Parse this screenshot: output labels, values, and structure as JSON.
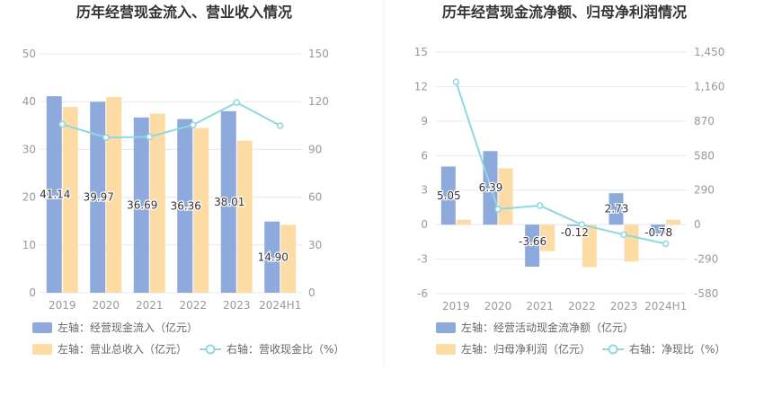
{
  "colors": {
    "blue": "#8eaadc",
    "orange": "#fddba4",
    "line": "#8ed8e0",
    "axis_text": "#999999",
    "grid": "#e6e8f0",
    "title": "#333333",
    "divider": "#eeeeee"
  },
  "chart_data": [
    {
      "type": "bar",
      "title": "历年经营现金流入、营业收入情况",
      "categories": [
        "2019",
        "2020",
        "2021",
        "2022",
        "2023",
        "2024H1"
      ],
      "y_left": {
        "min": 0,
        "max": 50,
        "ticks": [
          "0",
          "10",
          "20",
          "30",
          "40",
          "50"
        ]
      },
      "y_right": {
        "min": 0,
        "max": 150,
        "ticks": [
          "0",
          "30",
          "60",
          "90",
          "120",
          "150"
        ]
      },
      "grid": true,
      "series": [
        {
          "name": "左轴：经营现金流入（亿元）",
          "type": "bar",
          "axis": "left",
          "color": "#8eaadc",
          "values": [
            41.14,
            39.97,
            36.69,
            36.36,
            38.01,
            14.9
          ],
          "labels": [
            "41.14",
            "39.97",
            "36.69",
            "36.36",
            "38.01",
            "14.90"
          ]
        },
        {
          "name": "左轴：营业总收入（亿元）",
          "type": "bar",
          "axis": "left",
          "color": "#fddba4",
          "values": [
            38.9,
            41.0,
            37.5,
            34.5,
            31.8,
            14.2
          ]
        },
        {
          "name": "右轴：营收现金比（%）",
          "type": "line",
          "axis": "right",
          "color": "#8ed8e0",
          "values": [
            105.8,
            97.5,
            97.9,
            105.4,
            119.5,
            104.9
          ]
        }
      ],
      "legend": {
        "row1": [
          {
            "label": "左轴：经营现金流入（亿元）",
            "kind": "bar",
            "color": "#8eaadc"
          }
        ],
        "row2": [
          {
            "label": "左轴：营业总收入（亿元）",
            "kind": "bar",
            "color": "#fddba4"
          },
          {
            "label": "右轴：营收现金比（%）",
            "kind": "line",
            "color": "#8ed8e0"
          }
        ],
        "position": "bottom-left"
      }
    },
    {
      "type": "bar",
      "title": "历年经营现金流净额、归母净利润情况",
      "categories": [
        "2019",
        "2020",
        "2021",
        "2022",
        "2023",
        "2024H1"
      ],
      "y_left": {
        "min": -6,
        "max": 15,
        "ticks": [
          "-6",
          "-3",
          "0",
          "3",
          "6",
          "9",
          "12",
          "15"
        ]
      },
      "y_right": {
        "min": -580,
        "max": 1450,
        "ticks": [
          "-580",
          "-290",
          "0",
          "290",
          "580",
          "870",
          "1,160",
          "1,450"
        ]
      },
      "grid": true,
      "series": [
        {
          "name": "左轴：经营活动现金流净额（亿元）",
          "type": "bar",
          "axis": "left",
          "color": "#8eaadc",
          "values": [
            5.05,
            6.39,
            -3.66,
            -0.12,
            2.73,
            -0.78
          ],
          "labels": [
            "5.05",
            "6.39",
            "-3.66",
            "-0.12",
            "2.73",
            "-0.78"
          ]
        },
        {
          "name": "左轴：归母净利润（亿元）",
          "type": "bar",
          "axis": "left",
          "color": "#fddba4",
          "values": [
            0.42,
            4.9,
            -2.3,
            -3.7,
            -3.2,
            0.42
          ]
        },
        {
          "name": "右轴：净现比（%）",
          "type": "line",
          "axis": "right",
          "color": "#8ed8e0",
          "values": [
            1200,
            130,
            160,
            0,
            -85,
            -160
          ]
        }
      ],
      "legend": {
        "row1": [
          {
            "label": "左轴：经营活动现金流净额（亿元）",
            "kind": "bar",
            "color": "#8eaadc"
          }
        ],
        "row2": [
          {
            "label": "左轴：归母净利润（亿元）",
            "kind": "bar",
            "color": "#fddba4"
          },
          {
            "label": "右轴：净现比（%）",
            "kind": "line",
            "color": "#8ed8e0"
          }
        ],
        "position": "bottom-left"
      }
    }
  ]
}
